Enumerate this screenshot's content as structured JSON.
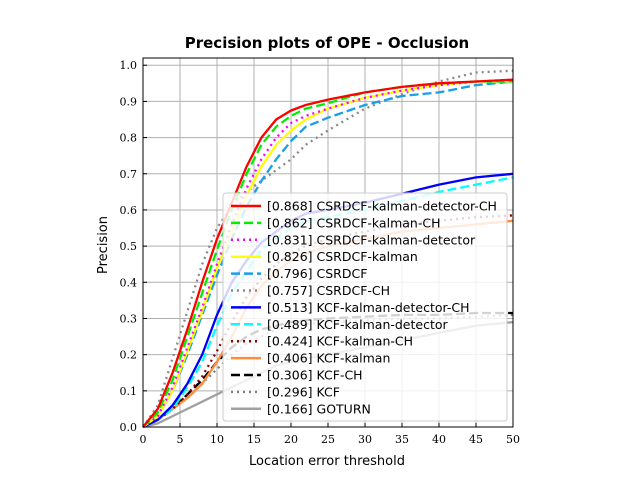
{
  "chart_data": {
    "type": "line",
    "title": "Precision plots of OPE - Occlusion",
    "xlabel": "Location error threshold",
    "ylabel": "Precision",
    "xlim": [
      0,
      50
    ],
    "ylim": [
      0,
      1.02
    ],
    "xticks": [
      0,
      5,
      10,
      15,
      20,
      25,
      30,
      35,
      40,
      45,
      50
    ],
    "yticks": [
      0,
      0.1,
      0.2,
      0.3,
      0.4,
      0.5,
      0.6,
      0.7,
      0.8,
      0.9,
      1.0
    ],
    "xtick_labels": [
      "0",
      "5",
      "10",
      "15",
      "20",
      "25",
      "30",
      "35",
      "40",
      "45",
      "50"
    ],
    "ytick_labels": [
      "0.0",
      "0.1",
      "0.2",
      "0.3",
      "0.4",
      "0.5",
      "0.6",
      "0.7",
      "0.8",
      "0.9",
      "1.0"
    ],
    "grid": true,
    "legend_position": "lower-right",
    "x": [
      0,
      2,
      4,
      6,
      8,
      10,
      12,
      14,
      16,
      18,
      20,
      22,
      25,
      30,
      35,
      40,
      45,
      50
    ],
    "series": [
      {
        "name": "[0.868] CSRDCF-kalman-detector-CH",
        "color": "#ff0000",
        "dash": "solid",
        "values": [
          0,
          0.05,
          0.15,
          0.27,
          0.4,
          0.52,
          0.62,
          0.72,
          0.8,
          0.85,
          0.875,
          0.89,
          0.905,
          0.925,
          0.94,
          0.95,
          0.955,
          0.96
        ]
      },
      {
        "name": "[0.862] CSRDCF-kalman-CH",
        "color": "#00ee00",
        "dash": "dashed",
        "values": [
          0,
          0.04,
          0.13,
          0.25,
          0.37,
          0.49,
          0.6,
          0.7,
          0.78,
          0.83,
          0.86,
          0.88,
          0.895,
          0.925,
          0.94,
          0.95,
          0.955,
          0.955
        ]
      },
      {
        "name": "[0.831] CSRDCF-kalman-detector",
        "color": "#ff00ff",
        "dash": "dotted",
        "values": [
          0,
          0.03,
          0.11,
          0.22,
          0.33,
          0.45,
          0.56,
          0.66,
          0.74,
          0.8,
          0.84,
          0.86,
          0.88,
          0.91,
          0.93,
          0.945,
          0.955,
          0.96
        ]
      },
      {
        "name": "[0.826] CSRDCF-kalman",
        "color": "#ffff00",
        "dash": "solid",
        "values": [
          0,
          0.03,
          0.1,
          0.21,
          0.32,
          0.44,
          0.54,
          0.64,
          0.72,
          0.78,
          0.82,
          0.85,
          0.88,
          0.91,
          0.93,
          0.945,
          0.955,
          0.955
        ]
      },
      {
        "name": "[0.796] CSRDCF",
        "color": "#1a9ee6",
        "dash": "dashed",
        "values": [
          0,
          0.03,
          0.1,
          0.2,
          0.31,
          0.42,
          0.52,
          0.61,
          0.68,
          0.74,
          0.79,
          0.83,
          0.855,
          0.89,
          0.915,
          0.925,
          0.945,
          0.955
        ]
      },
      {
        "name": "[0.757] CSRDCF-CH",
        "color": "#888888",
        "dash": "dotted",
        "values": [
          0,
          0.06,
          0.19,
          0.32,
          0.45,
          0.55,
          0.61,
          0.65,
          0.68,
          0.71,
          0.74,
          0.78,
          0.82,
          0.88,
          0.92,
          0.955,
          0.98,
          0.985
        ]
      },
      {
        "name": "[0.513] KCF-kalman-detector-CH",
        "color": "#0000ff",
        "dash": "solid",
        "values": [
          0,
          0.02,
          0.06,
          0.12,
          0.2,
          0.31,
          0.4,
          0.46,
          0.51,
          0.54,
          0.57,
          0.59,
          0.6,
          0.62,
          0.645,
          0.67,
          0.69,
          0.7
        ]
      },
      {
        "name": "[0.489] KCF-kalman-detector",
        "color": "#00ffff",
        "dash": "dashed",
        "values": [
          0,
          0.02,
          0.05,
          0.11,
          0.18,
          0.28,
          0.37,
          0.43,
          0.49,
          0.52,
          0.55,
          0.57,
          0.58,
          0.6,
          0.625,
          0.65,
          0.67,
          0.69
        ]
      },
      {
        "name": "[0.424] KCF-kalman-CH",
        "color": "#8b0000",
        "dash": "dotted",
        "values": [
          0,
          0.02,
          0.05,
          0.09,
          0.14,
          0.21,
          0.29,
          0.36,
          0.41,
          0.45,
          0.48,
          0.5,
          0.52,
          0.54,
          0.56,
          0.57,
          0.58,
          0.585
        ]
      },
      {
        "name": "[0.406] KCF-kalman",
        "color": "#ff8c3c",
        "dash": "solid",
        "values": [
          0,
          0.02,
          0.05,
          0.08,
          0.12,
          0.18,
          0.25,
          0.33,
          0.39,
          0.43,
          0.46,
          0.48,
          0.5,
          0.52,
          0.54,
          0.55,
          0.56,
          0.57
        ]
      },
      {
        "name": "[0.306] KCF-CH",
        "color": "#000000",
        "dash": "dashed",
        "values": [
          0,
          0.02,
          0.05,
          0.09,
          0.13,
          0.18,
          0.22,
          0.25,
          0.27,
          0.28,
          0.29,
          0.295,
          0.3,
          0.305,
          0.31,
          0.31,
          0.315,
          0.315
        ]
      },
      {
        "name": "[0.296] KCF",
        "color": "#808080",
        "dash": "dotted",
        "values": [
          0,
          0.02,
          0.05,
          0.08,
          0.12,
          0.16,
          0.2,
          0.23,
          0.25,
          0.27,
          0.28,
          0.285,
          0.29,
          0.295,
          0.3,
          0.3,
          0.305,
          0.31
        ]
      },
      {
        "name": "[0.166] GOTURN",
        "color": "#a0a0a0",
        "dash": "solid",
        "values": [
          0,
          0.01,
          0.03,
          0.05,
          0.07,
          0.09,
          0.11,
          0.13,
          0.15,
          0.17,
          0.18,
          0.19,
          0.2,
          0.22,
          0.24,
          0.26,
          0.28,
          0.29
        ]
      }
    ]
  }
}
